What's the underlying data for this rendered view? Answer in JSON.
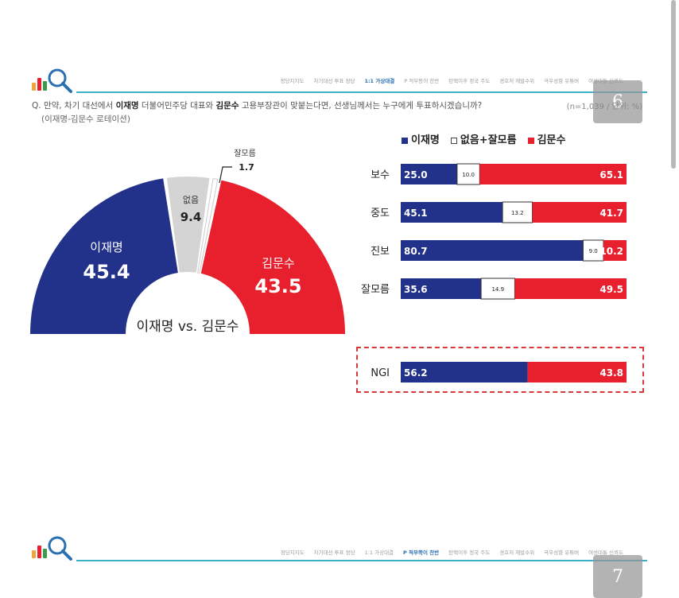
{
  "slide1": {
    "page_number": "6",
    "nav_tabs": [
      "정당지지도",
      "차기대선 투표 정당",
      "1:1 가상대결",
      "P 적부등이 잔반",
      "탄핵이후 정국 주도",
      "경호처 재발수위",
      "극우성향 유튜버",
      "여성대통 신뢰도"
    ],
    "nav_active_index": 2,
    "question_prefix": "Q. 만약, 차기 대선에서 ",
    "question_name1": "이재명",
    "question_mid": " 더불어민주당 대표와 ",
    "question_name2": "김문수",
    "question_suffix": " 고용부장관이 맞붙는다면, 선생님께서는 누구에게 투표하시겠습니까?",
    "question_line2": "(이재명-김문수 로테이션)",
    "sample_note": "(n=1,039 / 단위: %)",
    "legend": {
      "lee": "이재명",
      "none": "없음+잘모름",
      "kim": "김문수"
    }
  },
  "slide2": {
    "page_number": "7",
    "nav_tabs": [
      "정당지지도",
      "차기대선 투표 정당",
      "1:1 가상대결",
      "P 적부쪽이 찬반",
      "탄핵이후 정국 주도",
      "경호처 재발수위",
      "극우성향 유튜버",
      "여성대통 신뢰도"
    ],
    "nav_active_index": 3
  },
  "colors": {
    "lee": "#22318a",
    "kim": "#e8202e",
    "none": "#d4d4d4",
    "nav": "#3ab0c8"
  },
  "chart_data": [
    {
      "type": "pie",
      "title": "이재명 vs. 김문수",
      "labels": [
        "이재명",
        "없음",
        "잘모름",
        "김문수"
      ],
      "values": [
        45.4,
        9.4,
        1.7,
        43.5
      ]
    },
    {
      "type": "bar",
      "stacked": true,
      "orientation": "horizontal",
      "categories": [
        "보수",
        "중도",
        "진보",
        "잘모름"
      ],
      "series": [
        {
          "name": "이재명",
          "values": [
            25.0,
            45.1,
            80.7,
            35.6
          ]
        },
        {
          "name": "없음+잘모름",
          "values": [
            10.0,
            13.2,
            9.0,
            14.9
          ]
        },
        {
          "name": "김문수",
          "values": [
            65.1,
            41.7,
            10.2,
            49.5
          ]
        }
      ]
    },
    {
      "type": "bar",
      "stacked": true,
      "orientation": "horizontal",
      "categories": [
        "NGI"
      ],
      "series": [
        {
          "name": "이재명",
          "values": [
            56.2
          ]
        },
        {
          "name": "김문수",
          "values": [
            43.8
          ]
        }
      ]
    }
  ]
}
